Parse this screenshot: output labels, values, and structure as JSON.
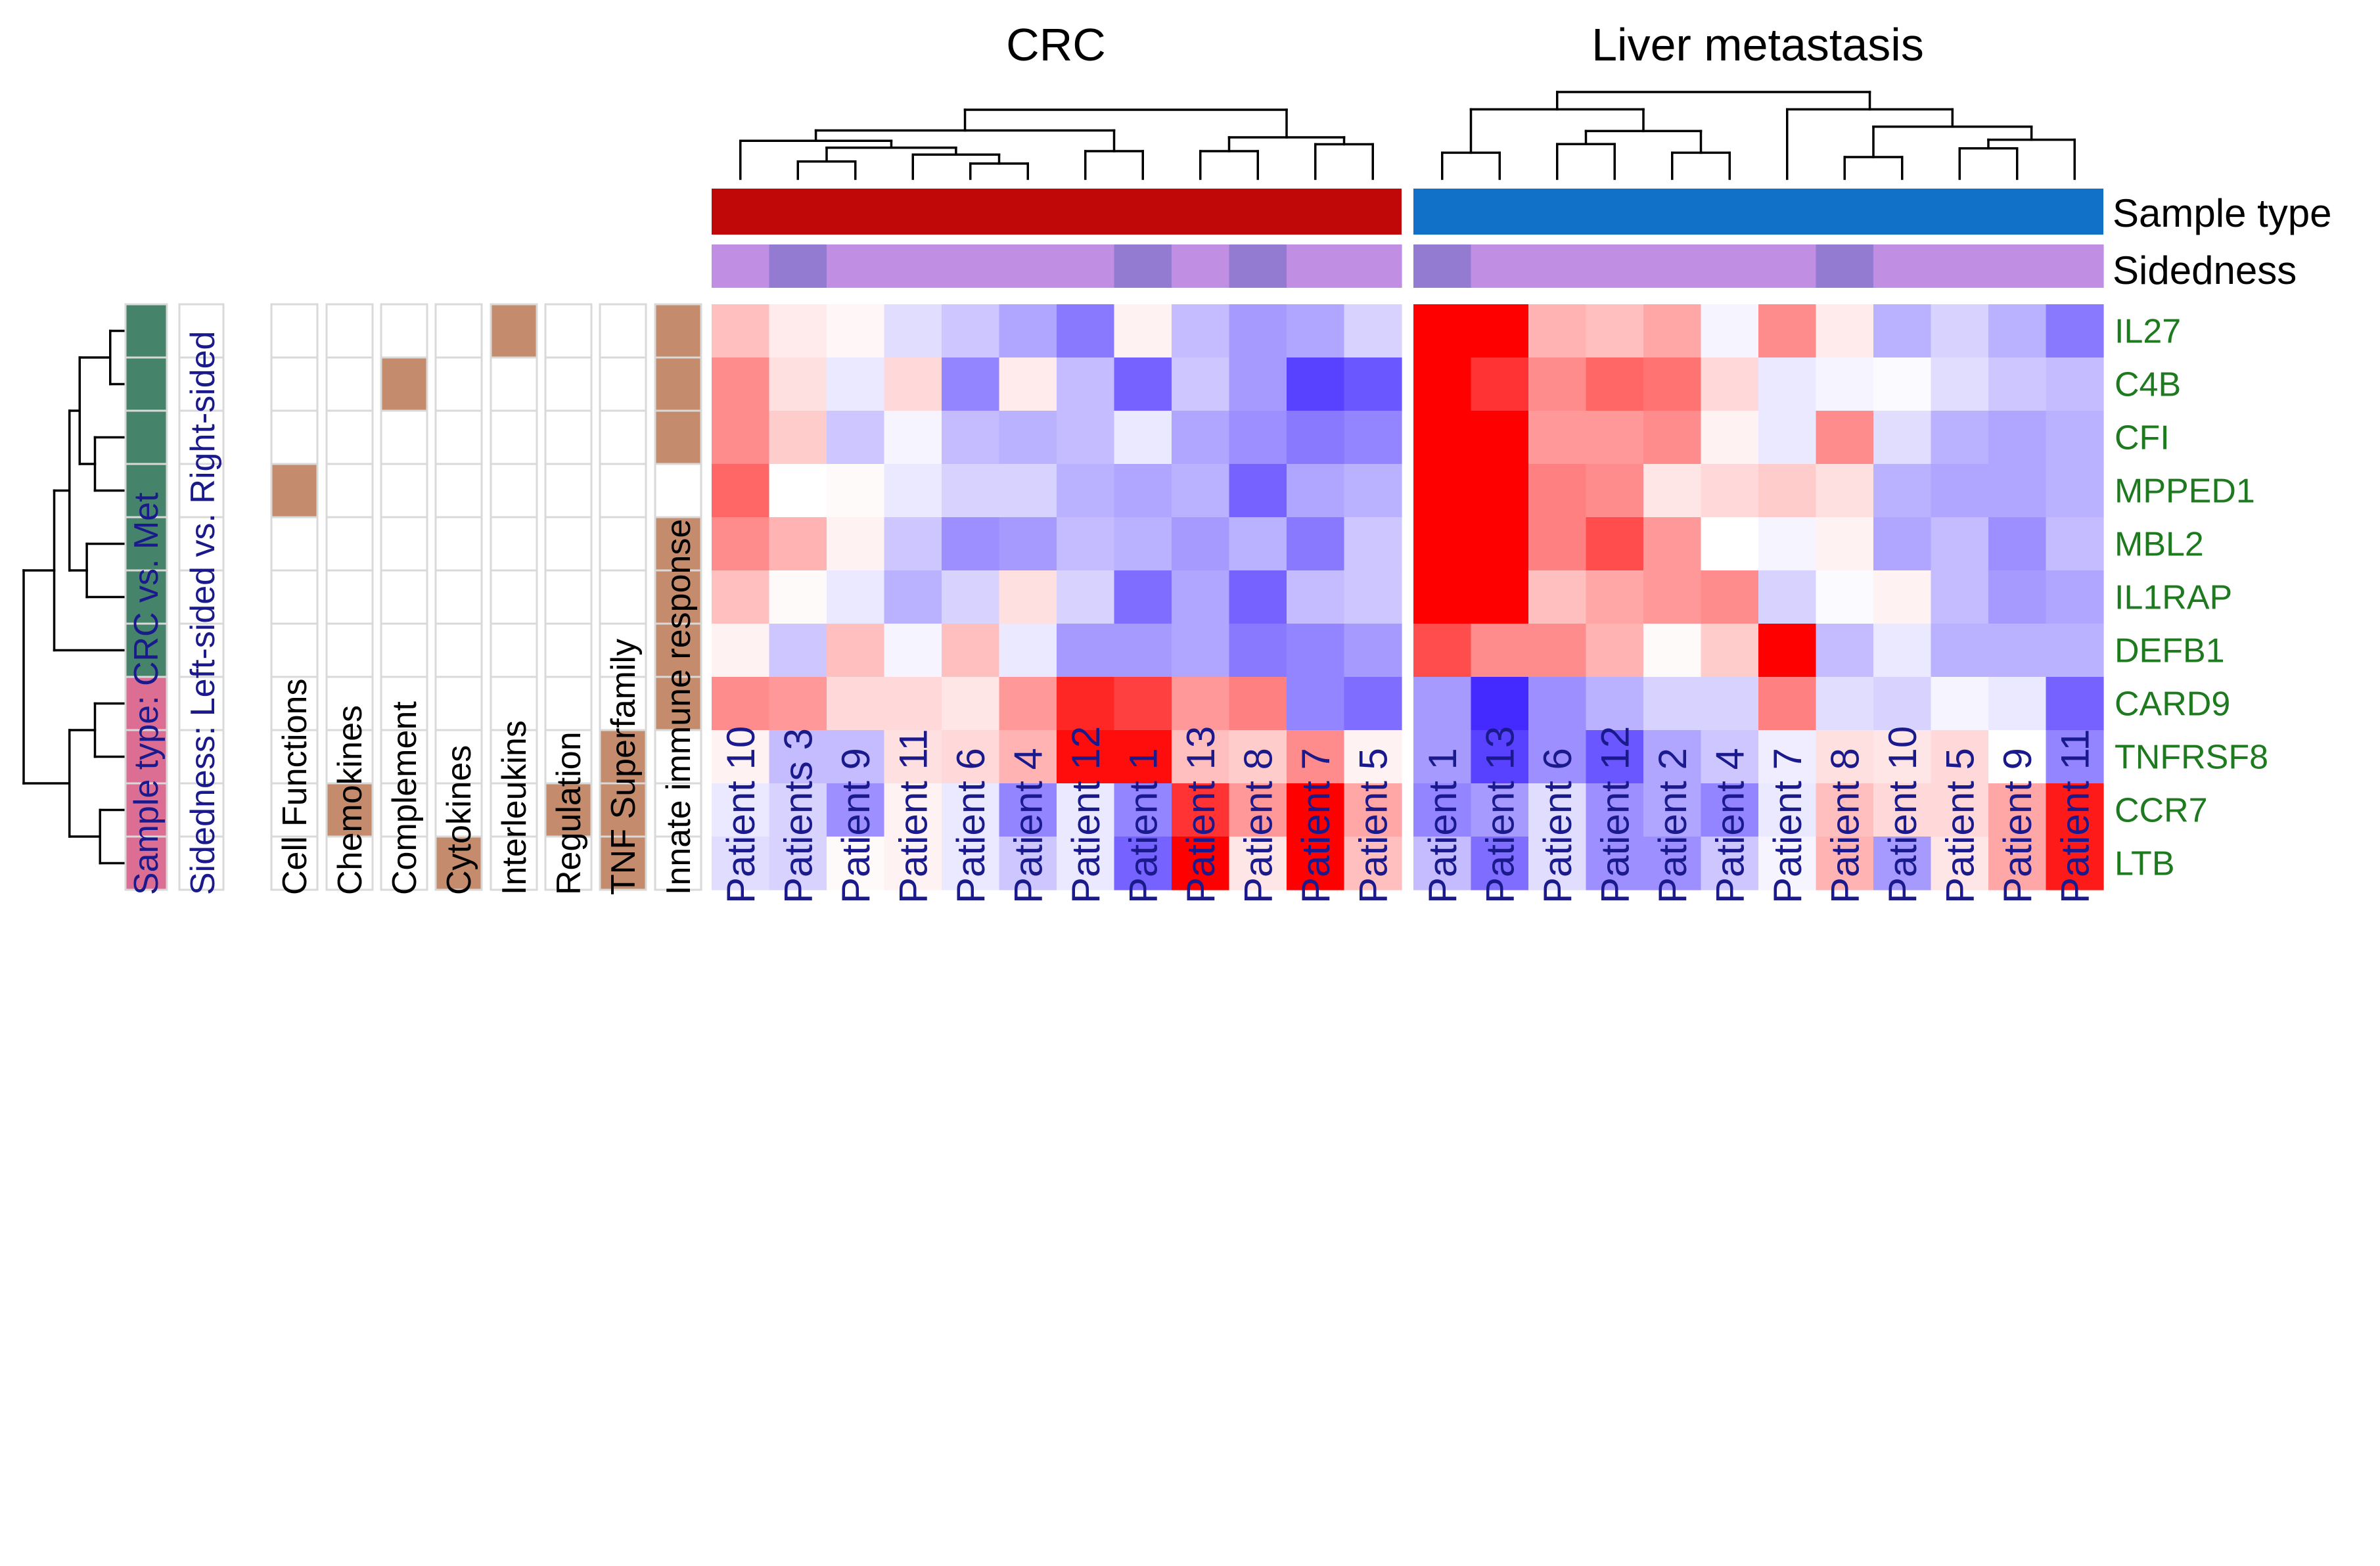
{
  "colors": {
    "crc": "#c00808",
    "met": "#1170c8",
    "sided_left": "#c08ee2",
    "sided_right": "#947bd2",
    "row_met": "#46836b",
    "row_crc": "#dc6e93",
    "category_fill": "#c48b6c",
    "low": "#3a1fff",
    "mid": "#ffffff",
    "high": "#ff0000"
  },
  "chart_data": {
    "type": "heatmap",
    "panels": [
      {
        "title": "CRC",
        "sample_type": "CRC",
        "samples": [
          "Patient 10",
          "Patients 3",
          "Patient 9",
          "Patient 11",
          "Patient 6",
          "Patient 4",
          "Patient 12",
          "Patient 1",
          "Patient 13",
          "Patient 8",
          "Patient 7",
          "Patient 5"
        ],
        "sidedness": [
          "L",
          "R",
          "L",
          "L",
          "L",
          "L",
          "L",
          "R",
          "L",
          "R",
          "L",
          "L"
        ]
      },
      {
        "title": "Liver metastasis",
        "sample_type": "Met",
        "samples": [
          "Patient 1",
          "Patient 13",
          "Patient 6",
          "Patient 12",
          "Patient 2",
          "Patient 4",
          "Patient 7",
          "Patient 8",
          "Patient 10",
          "Patient 5",
          "Patient 9",
          "Patient 11"
        ],
        "sidedness": [
          "R",
          "L",
          "L",
          "L",
          "L",
          "L",
          "L",
          "R",
          "L",
          "L",
          "L",
          "L"
        ]
      }
    ],
    "column_tracks": [
      "Sample type",
      "Sidedness"
    ],
    "genes": [
      "IL27",
      "C4B",
      "CFI",
      "MPPED1",
      "MBL2",
      "IL1RAP",
      "DEFB1",
      "CARD9",
      "TNFRSF8",
      "CCR7",
      "LTB"
    ],
    "row_sample_type": [
      "Met",
      "Met",
      "Met",
      "Met",
      "Met",
      "Met",
      "Met",
      "CRC",
      "CRC",
      "CRC",
      "CRC"
    ],
    "row_annotation_labels": [
      "Sample type: CRC vs. Met",
      "Sidedness: Left-sided vs. Right-sided"
    ],
    "categories": [
      "Cell Functions",
      "Chemokines",
      "Complement",
      "Cytokines",
      "Interleukins",
      "Regulation",
      "TNF Superfamily",
      "Innate immune response"
    ],
    "category_membership": [
      [
        0,
        0,
        0,
        0,
        1,
        0,
        0,
        1
      ],
      [
        0,
        0,
        1,
        0,
        0,
        0,
        0,
        1
      ],
      [
        0,
        0,
        0,
        0,
        0,
        0,
        0,
        1
      ],
      [
        1,
        0,
        0,
        0,
        0,
        0,
        0,
        0
      ],
      [
        0,
        0,
        0,
        0,
        0,
        0,
        0,
        1
      ],
      [
        0,
        0,
        0,
        0,
        0,
        0,
        0,
        1
      ],
      [
        0,
        0,
        0,
        0,
        0,
        0,
        0,
        1
      ],
      [
        0,
        0,
        0,
        0,
        0,
        0,
        0,
        1
      ],
      [
        0,
        0,
        0,
        0,
        0,
        0,
        1,
        0
      ],
      [
        0,
        1,
        0,
        0,
        0,
        1,
        1,
        0
      ],
      [
        0,
        0,
        0,
        1,
        0,
        0,
        1,
        0
      ]
    ],
    "value_scale": [
      -1,
      1
    ],
    "values_crc": [
      [
        0.25,
        0.08,
        0.03,
        -0.15,
        -0.25,
        -0.4,
        -0.6,
        0.05,
        -0.3,
        -0.45,
        -0.4,
        -0.2
      ],
      [
        0.45,
        0.12,
        -0.1,
        0.15,
        -0.55,
        0.08,
        -0.3,
        -0.7,
        -0.25,
        -0.45,
        -0.85,
        -0.75
      ],
      [
        0.45,
        0.2,
        -0.25,
        -0.05,
        -0.3,
        -0.35,
        -0.3,
        -0.1,
        -0.4,
        -0.5,
        -0.6,
        -0.55
      ],
      [
        0.6,
        0.0,
        0.02,
        -0.1,
        -0.2,
        -0.2,
        -0.35,
        -0.4,
        -0.35,
        -0.7,
        -0.4,
        -0.35
      ],
      [
        0.45,
        0.3,
        0.05,
        -0.25,
        -0.5,
        -0.45,
        -0.3,
        -0.35,
        -0.45,
        -0.35,
        -0.6,
        -0.25
      ],
      [
        0.25,
        0.02,
        -0.1,
        -0.35,
        -0.2,
        0.12,
        -0.2,
        -0.65,
        -0.4,
        -0.7,
        -0.3,
        -0.25
      ],
      [
        0.05,
        -0.25,
        0.25,
        -0.05,
        0.25,
        -0.1,
        -0.45,
        -0.45,
        -0.4,
        -0.6,
        -0.55,
        -0.45
      ],
      [
        0.45,
        0.4,
        0.15,
        0.15,
        0.1,
        0.4,
        0.85,
        0.75,
        0.4,
        0.5,
        -0.55,
        -0.65
      ],
      [
        0.05,
        -0.3,
        -0.3,
        0.12,
        0.15,
        0.3,
        0.95,
        0.95,
        0.25,
        0.2,
        0.45,
        0.05
      ],
      [
        -0.1,
        -0.2,
        -0.5,
        0.05,
        -0.1,
        -0.55,
        -0.1,
        -0.55,
        0.8,
        0.4,
        1.0,
        0.35
      ],
      [
        -0.15,
        -0.2,
        0.02,
        0.05,
        -0.1,
        -0.25,
        -0.1,
        -0.7,
        1.0,
        0.1,
        1.0,
        0.25
      ]
    ],
    "values_met": [
      [
        1.0,
        1.0,
        0.3,
        0.25,
        0.35,
        -0.05,
        0.45,
        0.08,
        -0.35,
        -0.2,
        -0.35,
        -0.6
      ],
      [
        1.0,
        0.8,
        0.45,
        0.6,
        0.55,
        0.15,
        -0.1,
        -0.05,
        -0.02,
        -0.15,
        -0.25,
        -0.3
      ],
      [
        1.0,
        1.0,
        0.4,
        0.4,
        0.45,
        0.05,
        -0.1,
        0.45,
        -0.15,
        -0.35,
        -0.4,
        -0.35
      ],
      [
        1.0,
        1.0,
        0.5,
        0.45,
        0.1,
        0.15,
        0.2,
        0.12,
        -0.35,
        -0.4,
        -0.4,
        -0.35
      ],
      [
        1.0,
        1.0,
        0.5,
        0.7,
        0.4,
        0.0,
        -0.05,
        0.05,
        -0.4,
        -0.3,
        -0.5,
        -0.3
      ],
      [
        1.0,
        1.0,
        0.25,
        0.35,
        0.4,
        0.45,
        -0.2,
        -0.02,
        0.05,
        -0.3,
        -0.45,
        -0.4
      ],
      [
        0.7,
        0.45,
        0.45,
        0.3,
        0.02,
        0.2,
        1.0,
        -0.3,
        -0.1,
        -0.35,
        -0.35,
        -0.35
      ],
      [
        -0.45,
        -0.95,
        -0.5,
        -0.35,
        -0.2,
        -0.2,
        0.5,
        -0.15,
        -0.2,
        -0.05,
        -0.1,
        -0.7
      ],
      [
        -0.45,
        -0.85,
        -0.5,
        -0.75,
        -0.4,
        -0.25,
        -0.08,
        0.12,
        0.1,
        0.15,
        0.0,
        -0.55
      ],
      [
        -0.55,
        -0.45,
        -0.15,
        -0.5,
        -0.4,
        -0.55,
        -0.1,
        0.25,
        0.15,
        0.15,
        0.35,
        0.9
      ],
      [
        -0.3,
        -0.65,
        -0.15,
        -0.5,
        -0.5,
        -0.25,
        -0.05,
        0.3,
        -0.45,
        0.1,
        0.35,
        0.9
      ]
    ]
  }
}
